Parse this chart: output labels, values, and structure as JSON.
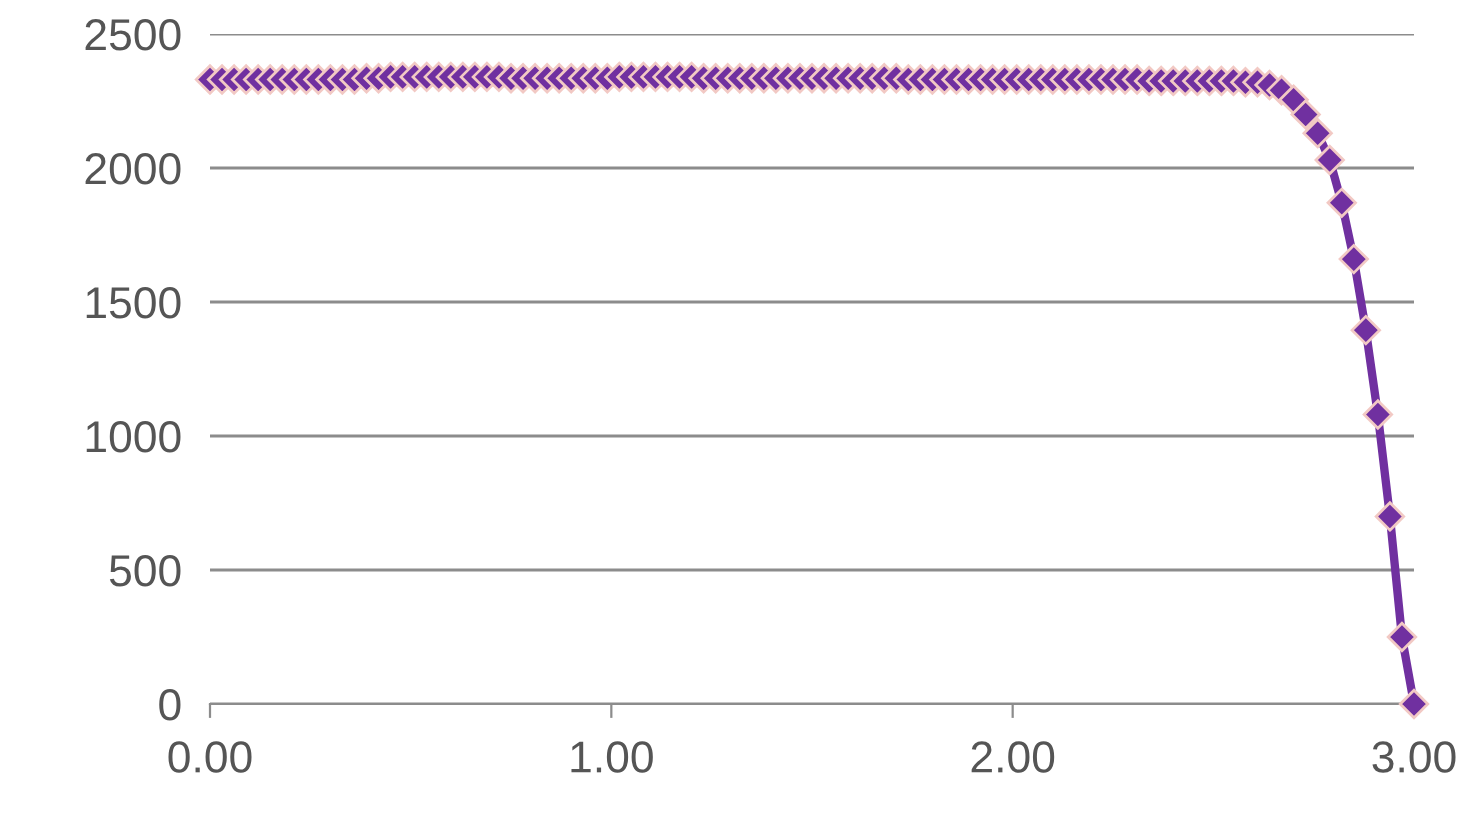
{
  "chart_data": {
    "type": "line",
    "x": [
      0,
      0.03,
      0.06,
      0.09,
      0.12,
      0.15,
      0.18,
      0.21,
      0.24,
      0.27,
      0.3,
      0.33,
      0.36,
      0.39,
      0.42,
      0.45,
      0.48,
      0.51,
      0.54,
      0.57,
      0.6,
      0.63,
      0.66,
      0.69,
      0.72,
      0.75,
      0.78,
      0.81,
      0.84,
      0.87,
      0.9,
      0.93,
      0.96,
      0.99,
      1.02,
      1.05,
      1.08,
      1.11,
      1.14,
      1.17,
      1.2,
      1.23,
      1.26,
      1.29,
      1.32,
      1.35,
      1.38,
      1.41,
      1.44,
      1.47,
      1.5,
      1.53,
      1.56,
      1.59,
      1.62,
      1.65,
      1.68,
      1.71,
      1.74,
      1.77,
      1.8,
      1.83,
      1.86,
      1.89,
      1.92,
      1.95,
      1.98,
      2.01,
      2.04,
      2.07,
      2.1,
      2.13,
      2.16,
      2.19,
      2.22,
      2.25,
      2.28,
      2.31,
      2.34,
      2.37,
      2.4,
      2.43,
      2.46,
      2.49,
      2.52,
      2.55,
      2.58,
      2.61,
      2.64,
      2.67,
      2.7,
      2.73,
      2.76,
      2.79,
      2.82,
      2.85,
      2.88,
      2.91,
      2.94,
      2.97,
      3.0
    ],
    "series": [
      {
        "color": "#7030a0",
        "values": [
          2330,
          2330,
          2330,
          2330,
          2330,
          2330,
          2330,
          2330,
          2330,
          2330,
          2330,
          2330,
          2330,
          2335,
          2335,
          2340,
          2340,
          2340,
          2340,
          2340,
          2340,
          2340,
          2340,
          2340,
          2340,
          2335,
          2335,
          2335,
          2335,
          2335,
          2335,
          2335,
          2335,
          2335,
          2340,
          2340,
          2340,
          2340,
          2340,
          2340,
          2340,
          2335,
          2335,
          2335,
          2335,
          2335,
          2335,
          2335,
          2335,
          2335,
          2335,
          2335,
          2335,
          2335,
          2335,
          2335,
          2335,
          2335,
          2330,
          2330,
          2330,
          2330,
          2330,
          2330,
          2330,
          2330,
          2330,
          2330,
          2330,
          2330,
          2330,
          2330,
          2330,
          2330,
          2330,
          2330,
          2330,
          2330,
          2325,
          2325,
          2325,
          2325,
          2325,
          2325,
          2325,
          2325,
          2320,
          2320,
          2310,
          2290,
          2255,
          2200,
          2130,
          2030,
          1870,
          1660,
          1395,
          1080,
          700,
          250,
          0
        ]
      }
    ],
    "xlim": [
      0,
      3.0
    ],
    "xticks": [
      {
        "value": 0,
        "label": "0.00"
      },
      {
        "value": 1,
        "label": "1.00"
      },
      {
        "value": 2,
        "label": "2.00"
      },
      {
        "value": 3,
        "label": "3.00"
      }
    ],
    "ylim": [
      0,
      2500
    ],
    "yticks": [
      0,
      500,
      1000,
      1500,
      2000,
      2500
    ],
    "grid": "y",
    "marker": "diamond",
    "line_style": "solid",
    "legend": false
  }
}
